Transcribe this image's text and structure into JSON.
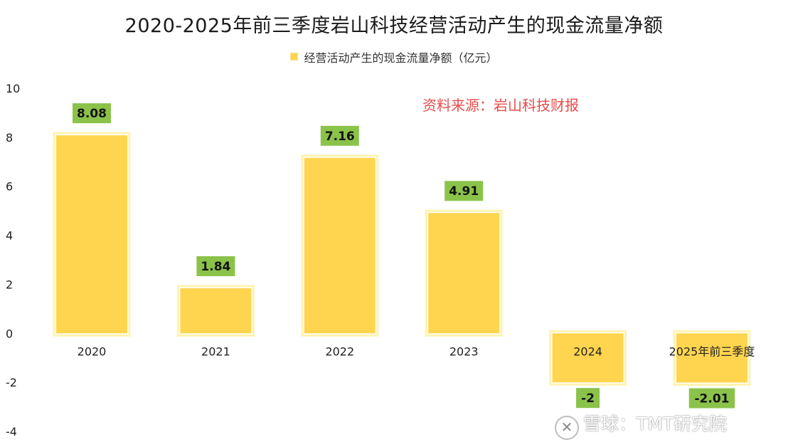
{
  "chart_data": {
    "type": "bar",
    "title": "2020-2025年前三季度岩山科技经营活动产生的现金流量净额",
    "series": [
      {
        "name": "经营活动产生的现金流量净额（亿元）",
        "values": [
          8.08,
          1.84,
          7.16,
          4.91,
          -2,
          -2.01
        ]
      }
    ],
    "categories": [
      "2020",
      "2021",
      "2022",
      "2023",
      "2024",
      "2025年前三季度"
    ],
    "data_labels": [
      "8.08",
      "1.84",
      "7.16",
      "4.91",
      "-2",
      "-2.01"
    ],
    "ylim": [
      -4,
      10
    ],
    "yticks": [
      "10",
      "8",
      "6",
      "4",
      "2",
      "0",
      "-2",
      "-4"
    ],
    "ytick_values": [
      10,
      8,
      6,
      4,
      2,
      0,
      -2,
      -4
    ],
    "legend_position": "top",
    "grid": false,
    "annotation": "资料来源：岩山科技财报",
    "colors": {
      "bar": "#FFD54F",
      "bar_outline": "#FFF3B0",
      "label_box": "#8BC34A",
      "annotation": "#E84B4B"
    }
  },
  "watermark": {
    "logo": "✕",
    "text": "雪球：TMT研究院"
  }
}
